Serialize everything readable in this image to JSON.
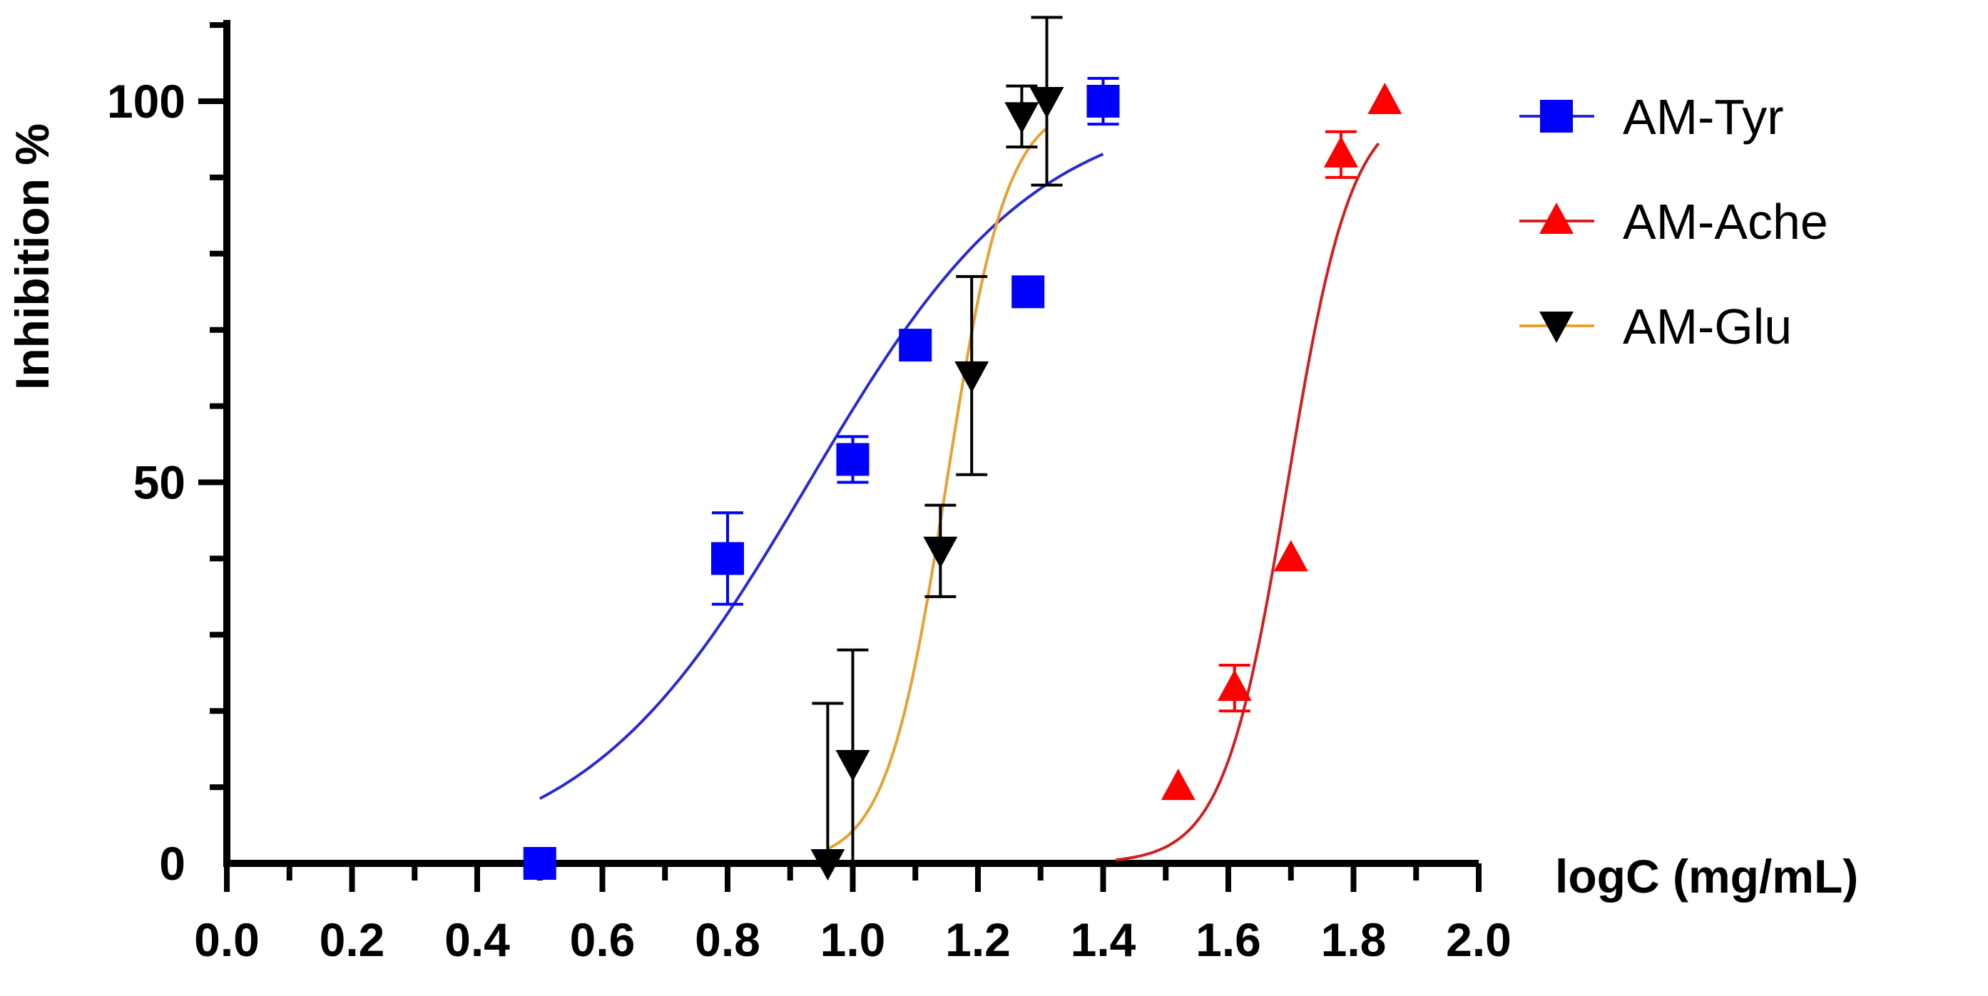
{
  "chart_data": {
    "type": "scatter",
    "title": "",
    "xlabel": "logC (mg/mL)",
    "ylabel": "Inhibition %",
    "xlim": [
      0.0,
      2.0
    ],
    "ylim": [
      0,
      110
    ],
    "x_ticks": [
      "0.0",
      "0.2",
      "0.4",
      "0.6",
      "0.8",
      "1.0",
      "1.2",
      "1.4",
      "1.6",
      "1.8",
      "2.0"
    ],
    "y_ticks": [
      "0",
      "50",
      "100"
    ],
    "grid": false,
    "legend_position": "top-right",
    "series": [
      {
        "name": "AM-Tyr",
        "color": "#0000ff",
        "line_color": "#2a2ad0",
        "marker": "square",
        "points": [
          {
            "x": 0.5,
            "y": 0,
            "err": 0
          },
          {
            "x": 0.8,
            "y": 40,
            "err": 6
          },
          {
            "x": 1.0,
            "y": 53,
            "err": 3
          },
          {
            "x": 1.1,
            "y": 68,
            "err": 0
          },
          {
            "x": 1.28,
            "y": 75,
            "err": 0
          },
          {
            "x": 1.4,
            "y": 100,
            "err": 3
          }
        ],
        "fit": {
          "bottom": 0,
          "top": 100,
          "logec50": 0.93,
          "hill": 2.4,
          "xmin": 0.5,
          "xmax": 1.4
        }
      },
      {
        "name": "AM-Ache",
        "color": "#ff0000",
        "line_color": "#d02020",
        "marker": "triangle-up",
        "points": [
          {
            "x": 1.52,
            "y": 10,
            "err": 0
          },
          {
            "x": 1.61,
            "y": 23,
            "err": 3
          },
          {
            "x": 1.7,
            "y": 40,
            "err": 0
          },
          {
            "x": 1.78,
            "y": 93,
            "err": 3
          },
          {
            "x": 1.85,
            "y": 100,
            "err": 0
          }
        ],
        "fit": {
          "bottom": 0,
          "top": 100,
          "logec50": 1.695,
          "hill": 8.5,
          "xmin": 1.42,
          "xmax": 1.84
        }
      },
      {
        "name": "AM-Glu",
        "color": "#000000",
        "line_color": "#e8a030",
        "marker": "triangle-down",
        "points": [
          {
            "x": 0.96,
            "y": 0,
            "err": 21
          },
          {
            "x": 1.0,
            "y": 13,
            "err": 15
          },
          {
            "x": 1.14,
            "y": 41,
            "err": 6
          },
          {
            "x": 1.19,
            "y": 64,
            "err": 13
          },
          {
            "x": 1.27,
            "y": 98,
            "err": 4
          },
          {
            "x": 1.31,
            "y": 100,
            "err": 11
          }
        ],
        "fit": {
          "bottom": 0,
          "top": 100,
          "logec50": 1.15,
          "hill": 9.0,
          "xmin": 0.96,
          "xmax": 1.31
        }
      }
    ]
  }
}
